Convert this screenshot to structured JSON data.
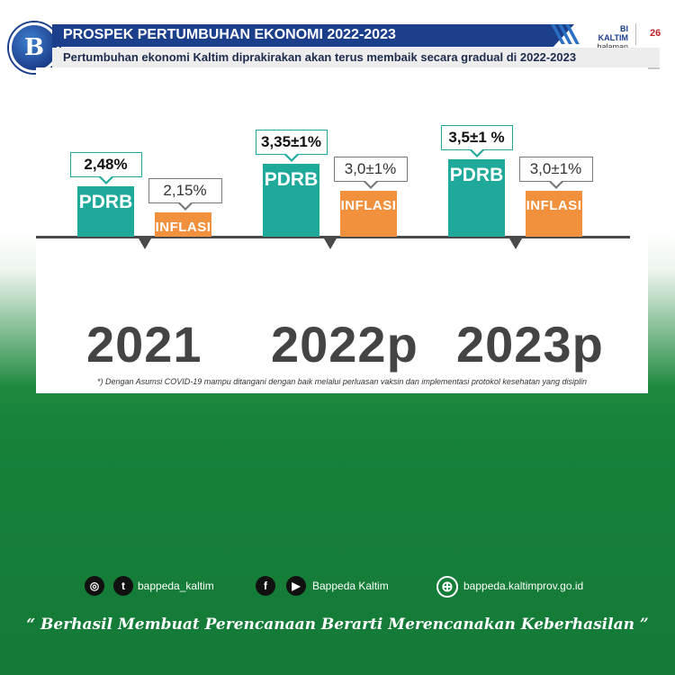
{
  "header": {
    "title": "PROSPEK PERTUMBUHAN EKONOMI 2022-2023",
    "subtitle": "Pertumbuhan ekonomi Kaltim diprakirakan akan terus membaik secara gradual di 2022-2023",
    "org": "BI KALTIM",
    "page_word": "halaman",
    "page_number": "26",
    "logo_icon": "bank-indonesia-logo"
  },
  "colors": {
    "pdrb": "#1ea99b",
    "inflasi": "#f2913d",
    "header_blue": "#1c3f8c",
    "green_bg": "#17823a"
  },
  "chart_data": {
    "type": "bar",
    "categories": [
      "2021",
      "2022p",
      "2023p"
    ],
    "series": [
      {
        "name": "PDRB",
        "values": [
          2.48,
          3.35,
          3.5
        ],
        "labels": [
          "2,48%",
          "3,35±1%",
          "3,5±1 %"
        ]
      },
      {
        "name": "INFLASI",
        "values": [
          2.15,
          3.0,
          3.0
        ],
        "labels": [
          "2,15%",
          "3,0±1%",
          "3,0±1%"
        ]
      }
    ],
    "footnote": "*) Dengan Asumsi COVID-19 mampu ditangani dengan baik melalui perluasan vaksin dan implementasi protokol kesehatan yang disiplin"
  },
  "footer": {
    "social": [
      {
        "icon": "instagram-icon",
        "text": ""
      },
      {
        "icon": "twitter-icon",
        "text": "bappeda_kaltim"
      },
      {
        "icon": "facebook-icon",
        "text": ""
      },
      {
        "icon": "youtube-icon",
        "text": "Bappeda Kaltim"
      },
      {
        "icon": "globe-icon",
        "text": "bappeda.kaltimprov.go.id"
      }
    ],
    "motto": "“ Berhasil  Membuat Perencanaan Berarti Merencanakan Keberhasilan ”"
  }
}
